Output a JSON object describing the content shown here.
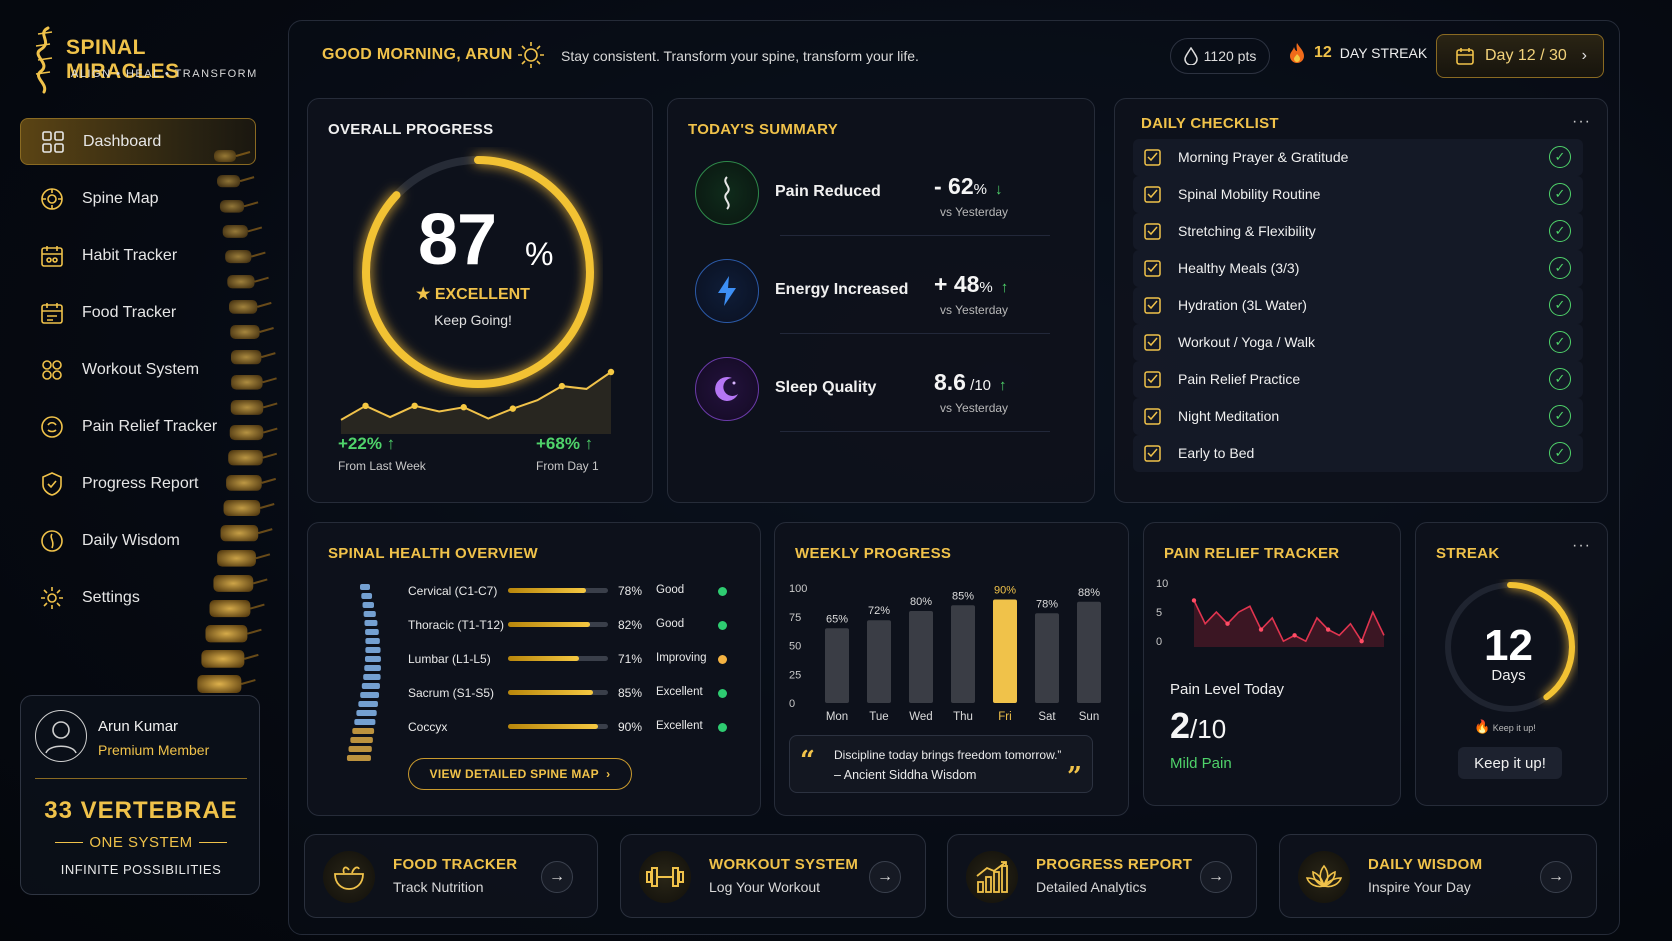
{
  "brand": {
    "name": "SPINAL MIRACLES",
    "tagline": "ALIGN • HEAL • TRANSFORM"
  },
  "nav": [
    {
      "label": "Dashboard",
      "icon": "grid-icon",
      "active": true
    },
    {
      "label": "Spine Map",
      "icon": "spine-map-icon"
    },
    {
      "label": "Habit Tracker",
      "icon": "habit-icon"
    },
    {
      "label": "Food Tracker",
      "icon": "food-icon"
    },
    {
      "label": "Workout System",
      "icon": "workout-icon"
    },
    {
      "label": "Pain Relief Tracker",
      "icon": "pain-icon"
    },
    {
      "label": "Progress Report",
      "icon": "report-icon"
    },
    {
      "label": "Daily Wisdom",
      "icon": "wisdom-icon"
    },
    {
      "label": "Settings",
      "icon": "gear-icon"
    }
  ],
  "profile": {
    "name": "Arun Kumar",
    "membership": "Premium Member",
    "line1": "33 VERTEBRAE",
    "line2": "ONE SYSTEM",
    "line3": "INFINITE POSSIBILITIES"
  },
  "header": {
    "greeting": "GOOD MORNING, ARUN",
    "motto": "Stay consistent. Transform your spine, transform your life.",
    "points": "1120 pts",
    "streak_num": "12",
    "streak_label": "DAY STREAK",
    "day": "Day 12 / 30"
  },
  "progress": {
    "title": "OVERALL PROGRESS",
    "value": "87",
    "pct_sign": "%",
    "percent": 87,
    "rating": "EXCELLENT",
    "sub": "Keep Going!",
    "left_value": "+22%",
    "left_label": "From Last Week",
    "right_value": "+68%",
    "right_label": "From Day 1",
    "trend": [
      48,
      58,
      50,
      58,
      54,
      57,
      49,
      56,
      62,
      72,
      70,
      82
    ]
  },
  "summary": {
    "title": "TODAY'S SUMMARY",
    "items": [
      {
        "label": "Pain Reduced",
        "value": "- 62",
        "unit": "%",
        "arrow": "↓",
        "sub": "vs Yesterday"
      },
      {
        "label": "Energy Increased",
        "value": "+ 48",
        "unit": "%",
        "arrow": "↑",
        "sub": "vs Yesterday"
      },
      {
        "label": "Sleep Quality",
        "value": "8.6",
        "unit": " /10",
        "arrow": "↑",
        "sub": "vs Yesterday"
      }
    ]
  },
  "checklist": {
    "title": "DAILY CHECKLIST",
    "more": "···",
    "items": [
      {
        "label": "Morning Prayer & Gratitude",
        "icon": "prayer-icon",
        "done": true
      },
      {
        "label": "Spinal Mobility Routine",
        "icon": "mobility-icon",
        "done": true
      },
      {
        "label": "Stretching & Flexibility",
        "icon": "stretch-icon",
        "done": true
      },
      {
        "label": "Healthy Meals (3/3)",
        "icon": "moon-meal-icon",
        "done": true
      },
      {
        "label": "Hydration (3L Water)",
        "icon": "bottle-icon",
        "done": true
      },
      {
        "label": "Workout / Yoga / Walk",
        "icon": "checkbox-icon",
        "done": true
      },
      {
        "label": "Pain Relief Practice",
        "icon": "checkbox-icon",
        "done": true
      },
      {
        "label": "Night Meditation",
        "icon": "moon-icon",
        "done": true
      },
      {
        "label": "Early to Bed",
        "icon": "bed-check-icon",
        "done": true
      }
    ]
  },
  "spine": {
    "title": "SPINAL HEALTH OVERVIEW",
    "button": "VIEW DETAILED SPINE MAP",
    "rows": [
      {
        "name": "Cervical (C1-C7)",
        "pct": "78%",
        "level": 0.78,
        "status": "Good",
        "color": "#2ecc71"
      },
      {
        "name": "Thoracic (T1-T12)",
        "pct": "82%",
        "level": 0.82,
        "status": "Good",
        "color": "#2ecc71"
      },
      {
        "name": "Lumbar (L1-L5)",
        "pct": "71%",
        "level": 0.71,
        "status": "Improving",
        "color": "#f5b342"
      },
      {
        "name": "Sacrum (S1-S5)",
        "pct": "85%",
        "level": 0.85,
        "status": "Excellent",
        "color": "#2ecc71"
      },
      {
        "name": "Coccyx",
        "pct": "90%",
        "level": 0.9,
        "status": "Excellent",
        "color": "#2ecc71"
      }
    ]
  },
  "weekly": {
    "title": "WEEKLY PROGRESS",
    "quote": "Discipline today brings freedom tomorrow.”",
    "author": "– Ancient Siddha Wisdom"
  },
  "chart_data": [
    {
      "type": "bar",
      "categories": [
        "Mon",
        "Tue",
        "Wed",
        "Thu",
        "Fri",
        "Sat",
        "Sun"
      ],
      "values": [
        65,
        72,
        80,
        85,
        90,
        78,
        88
      ],
      "labels": [
        "65%",
        "72%",
        "80%",
        "85%",
        "90%",
        "78%",
        "88%"
      ],
      "highlight": "Fri",
      "ylim": [
        0,
        100
      ],
      "yticks": [
        "100",
        "75",
        "50",
        "25",
        "0"
      ],
      "ytick_values": [
        100,
        75,
        50,
        25,
        0
      ]
    },
    {
      "type": "area",
      "values": [
        7,
        3,
        5,
        3,
        5,
        6,
        2,
        4,
        0,
        1,
        0,
        4,
        2,
        1,
        3,
        0,
        5,
        1
      ],
      "ylim": [
        -1,
        10
      ],
      "yticks": [
        "10",
        "5",
        "0"
      ],
      "ytick_values": [
        10,
        5,
        0
      ]
    }
  ],
  "pain": {
    "title": "PAIN RELIEF TRACKER",
    "today_label": "Pain Level Today",
    "value": "2",
    "out_of": "/10",
    "status": "Mild Pain"
  },
  "streak": {
    "title": "STREAK",
    "more": "···",
    "num": "12",
    "unit": "Days",
    "note": "Keep it up!",
    "button": "Keep it up!",
    "fraction": 0.4
  },
  "bottom": [
    {
      "title": "FOOD TRACKER",
      "sub": "Track Nutrition",
      "icon": "bowl-icon"
    },
    {
      "title": "WORKOUT SYSTEM",
      "sub": "Log Your Workout",
      "icon": "dumbbell-icon"
    },
    {
      "title": "PROGRESS REPORT",
      "sub": "Detailed Analytics",
      "icon": "bar-chart-icon"
    },
    {
      "title": "DAILY WISDOM",
      "sub": "Inspire Your Day",
      "icon": "lotus-icon"
    }
  ]
}
